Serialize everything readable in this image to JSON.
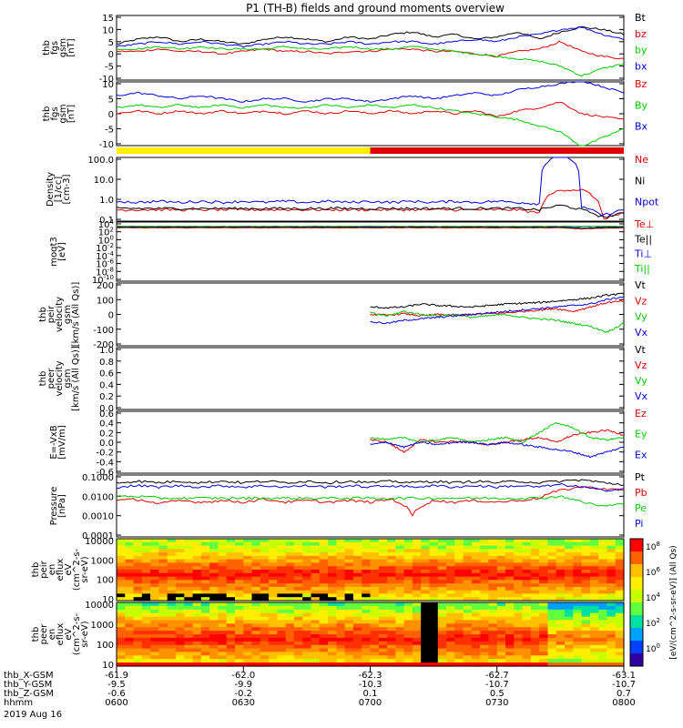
{
  "title": "P1 (TH-B) fields and ground moments overview",
  "colors": {
    "black": "#000000",
    "red": "#e00000",
    "green": "#00c800",
    "blue": "#0000e0",
    "yellow": "#ffee00",
    "barred": "#e00000"
  },
  "chart_data": [
    {
      "type": "line",
      "ylabel": [
        "thb",
        "fgs",
        "gsm",
        "[nT]"
      ],
      "yticks": [
        "15",
        "10",
        "5",
        "0",
        "-5",
        "-10"
      ],
      "series": [
        {
          "name": "Bt",
          "color": "black",
          "values": [
            4,
            6,
            7,
            5,
            6,
            5,
            4,
            6,
            7,
            6,
            5,
            7,
            6,
            8,
            9,
            7,
            8,
            6,
            7,
            9,
            6,
            9,
            11,
            10,
            8
          ]
        },
        {
          "name": "bz",
          "color": "red",
          "values": [
            1,
            1,
            2,
            1,
            1,
            0,
            1,
            2,
            1,
            1,
            0,
            1,
            1,
            2,
            2,
            1,
            1,
            0,
            -1,
            1,
            2,
            5,
            1,
            -1,
            -2
          ]
        },
        {
          "name": "by",
          "color": "green",
          "values": [
            2,
            2,
            3,
            2,
            3,
            2,
            2,
            2,
            3,
            2,
            2,
            3,
            2,
            2,
            3,
            2,
            1,
            0,
            -1,
            -2,
            -3,
            -5,
            -9,
            -6,
            -4
          ]
        },
        {
          "name": "bx",
          "color": "blue",
          "values": [
            3,
            4,
            5,
            4,
            5,
            4,
            3,
            4,
            5,
            4,
            4,
            5,
            4,
            5,
            5,
            4,
            5,
            6,
            5,
            7,
            8,
            10,
            11,
            8,
            6
          ]
        }
      ]
    },
    {
      "type": "line",
      "ylabel": [
        "thb",
        "fgs",
        "gsm",
        "[nT]"
      ],
      "yticks": [
        "10",
        "5",
        "0",
        "-5",
        "-10"
      ],
      "series": [
        {
          "name": "Bz",
          "color": "red",
          "values": [
            0,
            1,
            0,
            1,
            0,
            1,
            0,
            1,
            0,
            1,
            0,
            1,
            0,
            1,
            0,
            1,
            0,
            1,
            -1,
            1,
            2,
            4,
            0,
            -1,
            -2
          ]
        },
        {
          "name": "By",
          "color": "green",
          "values": [
            2,
            3,
            2,
            3,
            2,
            3,
            2,
            3,
            2,
            2,
            3,
            2,
            3,
            2,
            3,
            2,
            1,
            0,
            -1,
            -2,
            -4,
            -6,
            -11,
            -8,
            -5
          ]
        },
        {
          "name": "Bx",
          "color": "blue",
          "values": [
            6,
            7,
            6,
            5,
            6,
            5,
            4,
            5,
            5,
            4,
            5,
            5,
            4,
            5,
            6,
            5,
            6,
            7,
            6,
            8,
            9,
            10,
            11,
            9,
            7
          ]
        }
      ]
    },
    {
      "type": "line",
      "ylog": true,
      "ylabel": [
        "Density",
        "[1/cc]",
        "[cm-3]"
      ],
      "yticks": [
        "100.0",
        "10.0",
        "1.0",
        "0.1"
      ],
      "series": [
        {
          "name": "Ne",
          "color": "red",
          "values": [
            0.3,
            0.3,
            0.3,
            0.3,
            0.3,
            0.3,
            0.3,
            0.3,
            0.3,
            0.3,
            0.3,
            0.3,
            0.3,
            0.3,
            0.3,
            0.3,
            0.3,
            0.3,
            0.3,
            0.3,
            0.2,
            3,
            3,
            0.1,
            0.2
          ]
        },
        {
          "name": "Ni",
          "color": "black",
          "values": [
            0.35,
            0.35,
            0.35,
            0.35,
            0.35,
            0.35,
            0.35,
            0.35,
            0.35,
            0.35,
            0.35,
            0.35,
            0.35,
            0.35,
            0.35,
            0.35,
            0.35,
            0.35,
            0.35,
            0.35,
            0.3,
            0.5,
            0.3,
            0.12,
            0.2
          ]
        },
        {
          "name": "Npot",
          "color": "blue",
          "values": [
            0.8,
            0.7,
            0.8,
            0.7,
            0.8,
            0.7,
            0.8,
            0.7,
            0.8,
            0.7,
            0.8,
            0.7,
            0.8,
            0.7,
            0.8,
            0.7,
            0.8,
            0.7,
            0.8,
            0.7,
            0.6,
            200,
            0.4,
            0.15,
            0.3
          ]
        }
      ]
    },
    {
      "type": "line",
      "ylog": true,
      "ylabel": [
        "moqt3",
        "[eV]"
      ],
      "yticks": [
        "10^4",
        "10^2",
        "10^0",
        "10^-2",
        "10^-4",
        "10^-6",
        "10^-8",
        "10^-10"
      ],
      "series": [
        {
          "name": "Te⊥",
          "color": "red",
          "values": [
            1000,
            1000,
            1000,
            1000,
            1000,
            1000,
            1000,
            1000,
            1000,
            1000,
            1000,
            1000,
            1000,
            1000,
            1000,
            1000,
            1000,
            1000,
            1000,
            1000,
            1000,
            1000,
            500,
            800,
            1000
          ]
        },
        {
          "name": "Te||",
          "color": "black",
          "values": [
            1500,
            1500,
            1500,
            1500,
            1500,
            1500,
            1500,
            1500,
            1500,
            1500,
            1500,
            1500,
            1500,
            1500,
            1500,
            1500,
            1500,
            1500,
            1500,
            1500,
            1500,
            1500,
            700,
            1200,
            1500
          ]
        },
        {
          "name": "Ti⊥",
          "color": "blue",
          "values": [
            2000,
            2000,
            2000,
            2000,
            2000,
            2000,
            2000,
            2000,
            2000,
            2000,
            2000,
            2000,
            2000,
            2000,
            2000,
            2000,
            2000,
            2000,
            2000,
            2000,
            2000,
            2000,
            2000,
            2000,
            2000
          ]
        },
        {
          "name": "Ti||",
          "color": "green",
          "values": [
            2500,
            2500,
            2500,
            2500,
            2500,
            2500,
            2500,
            2500,
            2500,
            2500,
            2500,
            2500,
            2500,
            2500,
            2500,
            2500,
            2500,
            2500,
            2500,
            2500,
            2500,
            2500,
            2500,
            2500,
            2500
          ]
        }
      ]
    },
    {
      "type": "line",
      "ylabel": [
        "thb",
        "peir",
        "velocity",
        "gsm",
        "[km/s (All Qs)]"
      ],
      "yticks": [
        "200",
        "100",
        "0",
        "-100",
        "-200"
      ],
      "start": 0.5,
      "series": [
        {
          "name": "Vt",
          "color": "black",
          "values": [
            50,
            45,
            50,
            70,
            60,
            55,
            50,
            60,
            70,
            75,
            80,
            90,
            100,
            110,
            130,
            140
          ]
        },
        {
          "name": "Vz",
          "color": "red",
          "values": [
            0,
            -5,
            5,
            -10,
            0,
            -5,
            0,
            5,
            10,
            20,
            30,
            40,
            20,
            50,
            80,
            90
          ]
        },
        {
          "name": "Vy",
          "color": "green",
          "values": [
            10,
            -10,
            20,
            0,
            -10,
            0,
            -20,
            -10,
            0,
            -20,
            -30,
            -40,
            -60,
            -80,
            -120,
            -60
          ]
        },
        {
          "name": "Vx",
          "color": "blue",
          "values": [
            -50,
            -60,
            -40,
            -30,
            -20,
            -10,
            0,
            10,
            20,
            30,
            40,
            50,
            60,
            70,
            100,
            120
          ]
        }
      ]
    },
    {
      "type": "line",
      "ylabel": [
        "thb",
        "peer",
        "velocity",
        "gsm",
        "[km/s (All Qs)]"
      ],
      "yticks": [
        "1.0",
        "0.8",
        "0.6",
        "0.4",
        "0.2",
        "0.0"
      ],
      "series": [
        {
          "name": "Vt",
          "color": "black",
          "values": []
        },
        {
          "name": "Vz",
          "color": "red",
          "values": []
        },
        {
          "name": "Vy",
          "color": "green",
          "values": []
        },
        {
          "name": "Vx",
          "color": "blue",
          "values": []
        }
      ]
    },
    {
      "type": "line",
      "ylabel": [
        "E=-VxB",
        "[mV/m]"
      ],
      "yticks": [
        "0.6",
        "0.4",
        "0.2",
        "0.0",
        "-0.2",
        "-0.4",
        "-0.6"
      ],
      "start": 0.5,
      "series": [
        {
          "name": "Ez",
          "color": "red",
          "values": [
            0.05,
            0.0,
            -0.2,
            0.05,
            0.0,
            0.02,
            0.0,
            -0.05,
            0.0,
            0.05,
            0.1,
            0.0,
            0.15,
            0.2,
            0.25,
            0.15
          ]
        },
        {
          "name": "Ey",
          "color": "green",
          "values": [
            0.1,
            0.05,
            0.1,
            0.0,
            0.05,
            0.1,
            0.0,
            0.05,
            0.1,
            0.0,
            0.2,
            0.4,
            0.3,
            0.1,
            0.05,
            0.1
          ]
        },
        {
          "name": "Ex",
          "color": "blue",
          "values": [
            -0.05,
            0.0,
            -0.1,
            0.0,
            -0.05,
            0.0,
            0.0,
            -0.05,
            0.0,
            -0.05,
            -0.1,
            -0.15,
            -0.2,
            -0.3,
            -0.2,
            -0.1
          ]
        }
      ]
    },
    {
      "type": "line",
      "ylog": true,
      "ylabel": [
        "Pressure",
        "[nPa]"
      ],
      "yticks": [
        "0.1000",
        "0.0100",
        "0.0010",
        "0.0001"
      ],
      "series": [
        {
          "name": "Pt",
          "color": "black",
          "values": [
            0.05,
            0.06,
            0.05,
            0.06,
            0.05,
            0.06,
            0.05,
            0.06,
            0.05,
            0.06,
            0.05,
            0.06,
            0.05,
            0.06,
            0.05,
            0.06,
            0.05,
            0.06,
            0.05,
            0.06,
            0.05,
            0.06,
            0.07,
            0.05,
            0.04
          ]
        },
        {
          "name": "Pb",
          "color": "red",
          "values": [
            0.006,
            0.007,
            0.004,
            0.006,
            0.005,
            0.006,
            0.005,
            0.007,
            0.005,
            0.006,
            0.005,
            0.006,
            0.005,
            0.007,
            0.001,
            0.006,
            0.005,
            0.006,
            0.005,
            0.006,
            0.008,
            0.02,
            0.03,
            0.025,
            0.02
          ]
        },
        {
          "name": "Pe",
          "color": "green",
          "values": [
            0.01,
            0.01,
            0.008,
            0.008,
            0.008,
            0.008,
            0.008,
            0.008,
            0.008,
            0.008,
            0.008,
            0.008,
            0.008,
            0.008,
            0.008,
            0.008,
            0.008,
            0.008,
            0.008,
            0.008,
            0.008,
            0.01,
            0.005,
            0.003,
            0.004
          ]
        },
        {
          "name": "Pi",
          "color": "blue",
          "values": [
            0.03,
            0.035,
            0.03,
            0.035,
            0.03,
            0.035,
            0.03,
            0.035,
            0.03,
            0.035,
            0.03,
            0.035,
            0.03,
            0.035,
            0.03,
            0.035,
            0.03,
            0.035,
            0.03,
            0.035,
            0.03,
            0.04,
            0.03,
            0.02,
            0.025
          ]
        }
      ]
    },
    {
      "type": "heatmap",
      "ylabel": [
        "thb",
        "peir",
        "en",
        "eflux",
        "eV",
        "(cm^2-s-",
        "sr-eV)"
      ],
      "yticks": [
        "10000",
        "1000",
        "100",
        "10"
      ]
    },
    {
      "type": "heatmap",
      "ylabel": [
        "thb",
        "peer",
        "en",
        "eflux",
        "eV",
        "(cm^2-s-",
        "sr-eV)"
      ],
      "yticks": [
        "10000",
        "1000",
        "100",
        "10"
      ]
    }
  ],
  "colorbar": {
    "label": "[eV/(cm^2-s-sr-eV)] (All Qs)",
    "ticks": [
      "10^8",
      "10^6",
      "10^4",
      "10^2",
      "10^0"
    ]
  },
  "x_axis": {
    "rows": [
      {
        "name": "thb_X-GSM",
        "values": [
          "-61.9",
          "-62.0",
          "-62.3",
          "-62.7",
          "-63.1"
        ]
      },
      {
        "name": "thb_Y-GSM",
        "values": [
          "-9.5",
          "-9.9",
          "-10.3",
          "-10.7",
          "-10.7"
        ]
      },
      {
        "name": "thb_Z-GSM",
        "values": [
          "-0.6",
          "-0.2",
          "0.1",
          "0.5",
          "0.7"
        ]
      },
      {
        "name": "hhmm",
        "values": [
          "0600",
          "0630",
          "0700",
          "0730",
          "0800"
        ]
      }
    ],
    "date": "2019 Aug 16"
  }
}
